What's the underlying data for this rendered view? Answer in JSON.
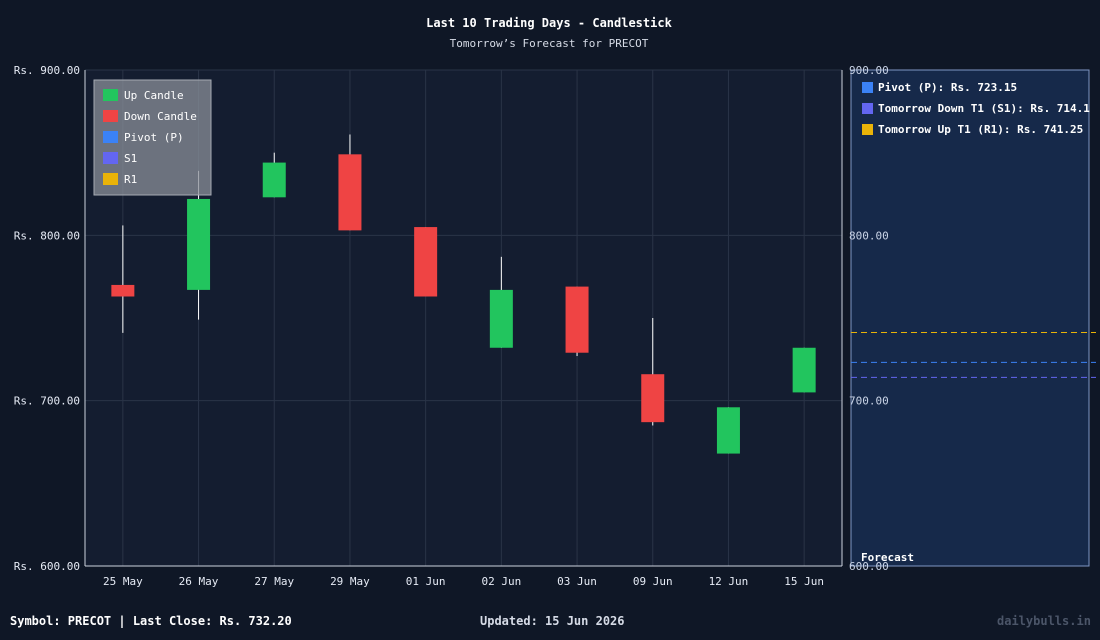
{
  "chart_data": {
    "type": "candlestick",
    "title": "Last 10 Trading Days - Candlestick",
    "subtitle": "Tomorrow’s Forecast for PRECOT",
    "currency_prefix": "Rs. ",
    "ylim": [
      600,
      900
    ],
    "y_ticks": [
      "Rs. 900.00",
      "Rs. 800.00",
      "Rs. 700.00",
      "Rs. 600.00"
    ],
    "y_tick_values": [
      900,
      800,
      700,
      600
    ],
    "forecast_ticks": [
      "900.00",
      "800.00",
      "700.00",
      "600.00"
    ],
    "categories": [
      "25 May",
      "26 May",
      "27 May",
      "29 May",
      "01 Jun",
      "02 Jun",
      "03 Jun",
      "09 Jun",
      "12 Jun",
      "15 Jun"
    ],
    "candles": [
      {
        "open": 770.0,
        "close": 763.0,
        "high": 806.0,
        "low": 741.0
      },
      {
        "open": 767.0,
        "close": 822.0,
        "high": 839.0,
        "low": 749.0
      },
      {
        "open": 823.0,
        "close": 844.0,
        "high": 850.0,
        "low": 823.0
      },
      {
        "open": 849.0,
        "close": 803.0,
        "high": 861.0,
        "low": 803.0
      },
      {
        "open": 805.0,
        "close": 763.0,
        "high": 805.0,
        "low": 763.0
      },
      {
        "open": 732.0,
        "close": 767.0,
        "high": 787.0,
        "low": 732.0
      },
      {
        "open": 769.0,
        "close": 729.0,
        "high": 769.0,
        "low": 727.0
      },
      {
        "open": 716.0,
        "close": 687.0,
        "high": 750.0,
        "low": 685.0
      },
      {
        "open": 668.0,
        "close": 696.0,
        "high": 696.0,
        "low": 668.0
      },
      {
        "open": 705.0,
        "close": 732.0,
        "high": 732.0,
        "low": 705.0
      }
    ],
    "legend": [
      "Up Candle",
      "Down Candle",
      "Pivot (P)",
      "S1",
      "R1"
    ],
    "legend_placement": "top-left",
    "forecast": {
      "label": "Forecast",
      "items": [
        {
          "label": "Pivot (P): Rs. 723.15",
          "value": 723.15,
          "color": "#3b82f6"
        },
        {
          "label": "Tomorrow Down T1 (S1): Rs. 714.1",
          "value": 714.1,
          "color": "#6366f1"
        },
        {
          "label": "Tomorrow Up T1 (R1): Rs. 741.25",
          "value": 741.25,
          "color": "#eab308"
        }
      ]
    },
    "grid": true
  },
  "colors": {
    "up": "#22c55e",
    "down": "#ef4444",
    "pivot": "#3b82f6",
    "s1": "#6366f1",
    "r1": "#eab308",
    "background": "#0f1726",
    "plot_bg": "#141d30",
    "forecast_bg": "#16294a",
    "grid": "#2a3447"
  },
  "footer": {
    "symbol": "Symbol: PRECOT  |  Last Close: Rs. 732.20",
    "updated": "Updated: 15 Jun 2026",
    "brand": "dailybulls.in"
  }
}
